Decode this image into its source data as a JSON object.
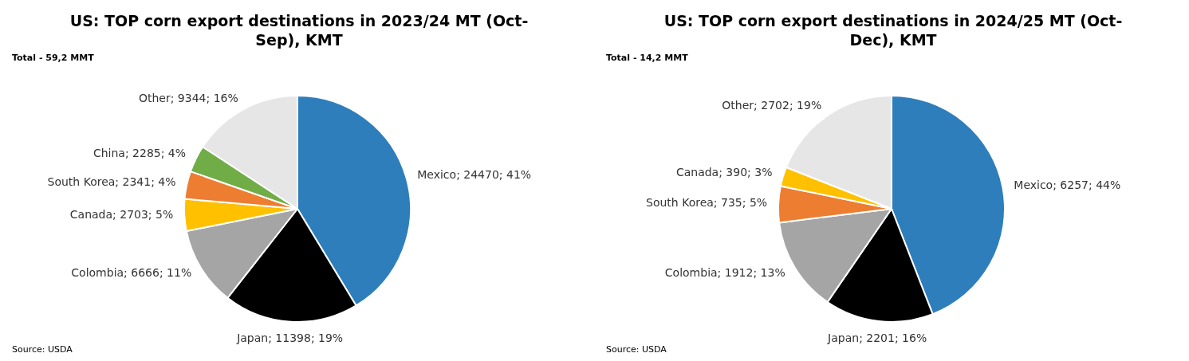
{
  "chart_data": [
    {
      "type": "pie",
      "title": "US: TOP corn export destinations in 2023/24 MT (Oct-Sep), KMT",
      "categories": [
        "Mexico",
        "Japan",
        "Colombia",
        "Canada",
        "South Korea",
        "China",
        "Other"
      ],
      "values": [
        24470,
        11398,
        6666,
        2703,
        2341,
        2285,
        9344
      ],
      "value_labels": [
        "24470; 41%",
        "11398; 19%",
        "6666; 11%",
        "2703; 5%",
        "2341; 4%",
        "2285; 4%",
        "9344; 16%"
      ],
      "colors": [
        "#2e7ebb",
        "#000000",
        "#a5a5a5",
        "#ffc000",
        "#ed7d31",
        "#70ad47",
        "#e7e6e6"
      ],
      "legend": false,
      "annotations": [
        "Total - 59,2 MMT",
        "Source: USDA"
      ]
    },
    {
      "type": "pie",
      "title": "US: TOP corn export destinations in 2024/25 MT (Oct-Dec), KMT",
      "categories": [
        "Mexico",
        "Japan",
        "Colombia",
        "South Korea",
        "Canada",
        "Other"
      ],
      "values": [
        6257,
        2201,
        1912,
        735,
        390,
        2702
      ],
      "value_labels": [
        "6257; 44%",
        "2201; 16%",
        "1912; 13%",
        "735; 5%",
        "390; 3%",
        "2702; 19%"
      ],
      "colors": [
        "#2e7ebb",
        "#000000",
        "#a5a5a5",
        "#ed7d31",
        "#ffc000",
        "#e7e6e6"
      ],
      "legend": false,
      "annotations": [
        "Total - 14,2 MMT",
        "Source: USDA"
      ]
    }
  ]
}
